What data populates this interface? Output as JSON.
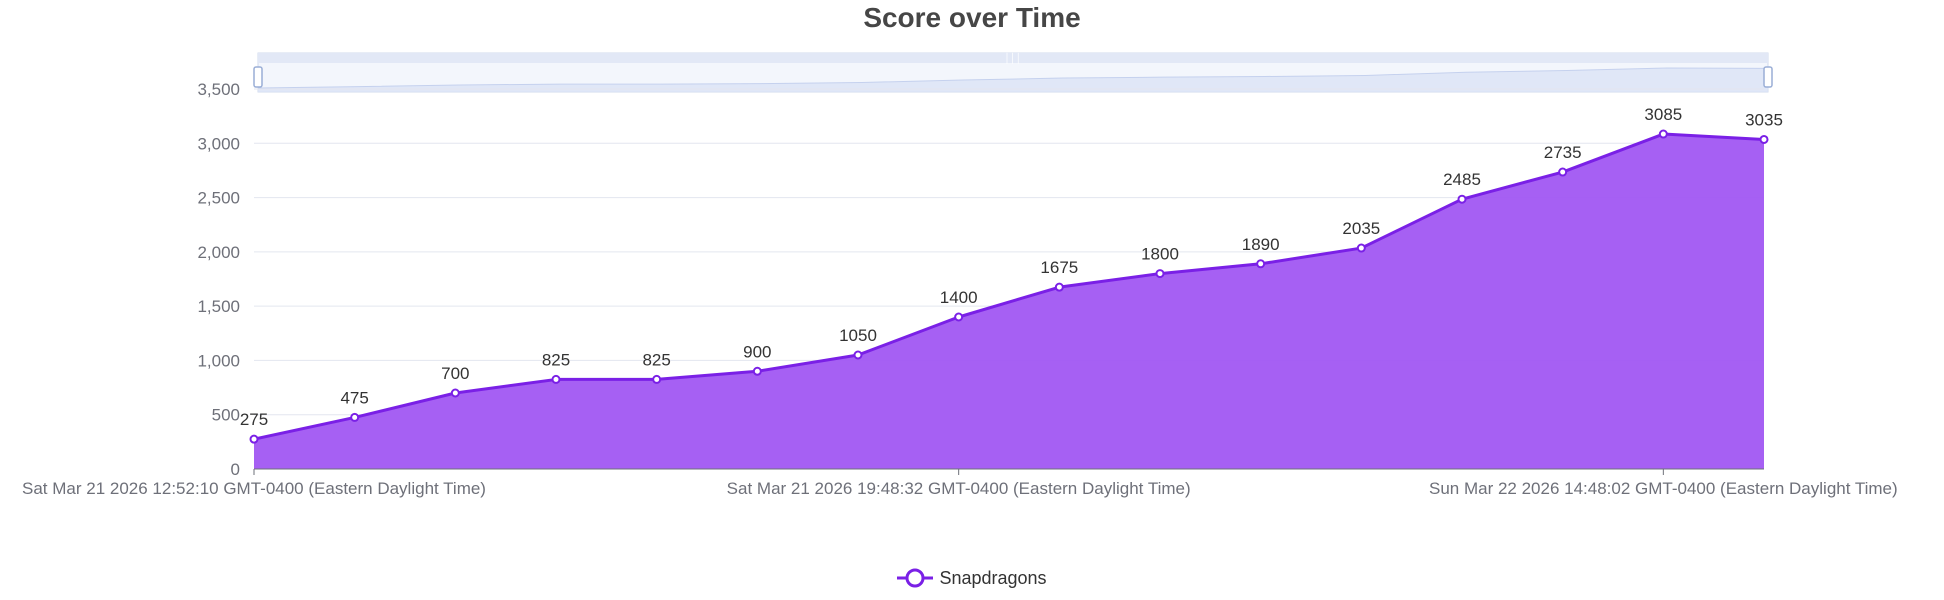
{
  "colors": {
    "series": "#7a20e6",
    "area": "#a157f2",
    "grid": "#e3e6ef",
    "axis_text": "#6e7079",
    "label_text": "#333333",
    "slider_fill": "#e2e8f6",
    "slider_border": "#d2dbee",
    "slider_mini": "#dbe3f5"
  },
  "chart_data": {
    "type": "area",
    "title": "Score over Time",
    "x_tick_labels": [
      "Sat Mar 21 2026 12:52:10 GMT-0400 (Eastern Daylight Time)",
      "Sat Mar 21 2026 19:48:32 GMT-0400 (Eastern Daylight Time)",
      "Sun Mar 22 2026 14:48:02 GMT-0400 (Eastern Daylight Time)"
    ],
    "y_tick_labels": [
      "0",
      "500",
      "1,000",
      "1,500",
      "2,000",
      "2,500",
      "3,000",
      "3,500"
    ],
    "ylim": [
      0,
      3500
    ],
    "grid": true,
    "legend_position": "bottom-center",
    "data_zoom_slider": true,
    "series": [
      {
        "name": "Snapdragons",
        "values": [
          275,
          475,
          700,
          825,
          825,
          900,
          1050,
          1400,
          1675,
          1800,
          1890,
          2035,
          2485,
          2735,
          3085,
          3035
        ]
      }
    ]
  }
}
